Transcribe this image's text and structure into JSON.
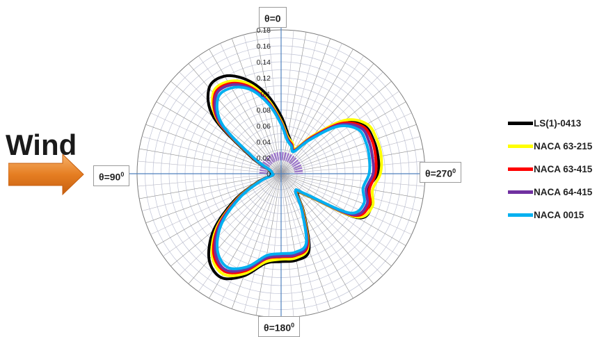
{
  "chart_data": {
    "type": "radar",
    "r_tick_labels": [
      "0",
      "0.02",
      "0.04",
      "0.06",
      "0.08",
      "0.1",
      "0.12",
      "0.14",
      "0.16",
      "0.18"
    ],
    "rlim": [
      0,
      0.18
    ],
    "angle_step_deg": 10,
    "grid": true,
    "legend_position": "right",
    "direction_labels": [
      {
        "main": "θ=0",
        "sup": ""
      },
      {
        "main": "θ=90",
        "sup": "0"
      },
      {
        "main": "θ=180",
        "sup": "0"
      },
      {
        "main": "θ=270",
        "sup": "0"
      }
    ],
    "angles_deg": [
      0,
      10,
      20,
      30,
      40,
      50,
      60,
      70,
      80,
      90,
      100,
      110,
      120,
      130,
      140,
      150,
      160,
      170,
      180,
      190,
      200,
      210,
      220,
      230,
      240,
      250,
      260,
      270,
      280,
      290,
      300,
      310,
      320,
      330,
      340,
      350
    ],
    "series": [
      {
        "name": "LS(1)-0413",
        "color": "#000000",
        "values": [
          0.072,
          0.1,
          0.125,
          0.141,
          0.14,
          0.11,
          0.045,
          0.018,
          0.013,
          0.012,
          0.012,
          0.032,
          0.068,
          0.11,
          0.14,
          0.15,
          0.136,
          0.114,
          0.11,
          0.11,
          0.102,
          0.057,
          0.032,
          0.043,
          0.11,
          0.12,
          0.11,
          0.121,
          0.123,
          0.123,
          0.12,
          0.1,
          0.06,
          0.035,
          0.04,
          0.05
        ]
      },
      {
        "name": "NACA 63-215",
        "color": "#ffff00",
        "values": [
          0.066,
          0.094,
          0.12,
          0.133,
          0.132,
          0.103,
          0.042,
          0.017,
          0.012,
          0.011,
          0.011,
          0.03,
          0.064,
          0.105,
          0.134,
          0.145,
          0.133,
          0.112,
          0.107,
          0.107,
          0.098,
          0.055,
          0.03,
          0.042,
          0.108,
          0.121,
          0.116,
          0.124,
          0.127,
          0.127,
          0.124,
          0.104,
          0.062,
          0.036,
          0.041,
          0.047
        ]
      },
      {
        "name": "NACA 63-415",
        "color": "#ff0000",
        "values": [
          0.064,
          0.091,
          0.116,
          0.13,
          0.129,
          0.101,
          0.041,
          0.016,
          0.012,
          0.011,
          0.011,
          0.029,
          0.062,
          0.102,
          0.131,
          0.141,
          0.129,
          0.108,
          0.104,
          0.104,
          0.096,
          0.053,
          0.029,
          0.04,
          0.104,
          0.117,
          0.112,
          0.118,
          0.12,
          0.121,
          0.118,
          0.098,
          0.059,
          0.034,
          0.039,
          0.045
        ]
      },
      {
        "name": "NACA 64-415",
        "color": "#7030a0",
        "values": [
          0.063,
          0.09,
          0.114,
          0.128,
          0.127,
          0.099,
          0.04,
          0.016,
          0.012,
          0.011,
          0.011,
          0.028,
          0.061,
          0.1,
          0.128,
          0.139,
          0.127,
          0.107,
          0.103,
          0.103,
          0.094,
          0.052,
          0.028,
          0.04,
          0.102,
          0.114,
          0.108,
          0.115,
          0.116,
          0.117,
          0.115,
          0.095,
          0.057,
          0.033,
          0.038,
          0.044
        ]
      },
      {
        "name": "NACA 0015",
        "color": "#00b0f0",
        "values": [
          0.062,
          0.088,
          0.112,
          0.124,
          0.123,
          0.096,
          0.039,
          0.016,
          0.012,
          0.011,
          0.011,
          0.028,
          0.059,
          0.097,
          0.124,
          0.135,
          0.124,
          0.104,
          0.1,
          0.1,
          0.092,
          0.051,
          0.028,
          0.039,
          0.098,
          0.11,
          0.104,
          0.11,
          0.112,
          0.113,
          0.111,
          0.092,
          0.055,
          0.032,
          0.037,
          0.043
        ]
      }
    ]
  },
  "wind": {
    "label": "Wind",
    "arrow_color": "#e67e22"
  }
}
